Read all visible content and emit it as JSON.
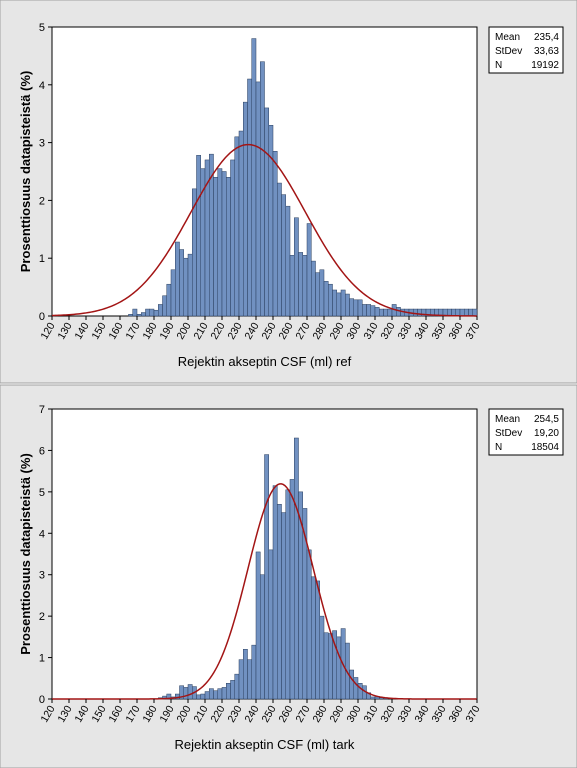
{
  "chart_data": [
    {
      "type": "bar",
      "subtype": "histogram-with-normal-fit",
      "title": "",
      "xlabel": "Rejektin akseptin CSF (ml) ref",
      "ylabel": "Prosenttiosuus datapisteistä (%)",
      "xlim": [
        120,
        370
      ],
      "ylim": [
        0,
        5
      ],
      "xticks": [
        "120",
        "130",
        "140",
        "150",
        "160",
        "170",
        "180",
        "190",
        "200",
        "210",
        "220",
        "230",
        "240",
        "250",
        "260",
        "270",
        "280",
        "290",
        "300",
        "310",
        "320",
        "330",
        "340",
        "350",
        "360",
        "370"
      ],
      "yticks": [
        "0",
        "1",
        "2",
        "3",
        "4",
        "5"
      ],
      "bin_start": 120,
      "bin_width": 2.5,
      "values": [
        0,
        0,
        0,
        0,
        0,
        0,
        0,
        0,
        0,
        0,
        0,
        0,
        0,
        0,
        0,
        0,
        0,
        0,
        0.03,
        0.12,
        0.03,
        0.06,
        0.12,
        0.12,
        0.1,
        0.2,
        0.35,
        0.55,
        0.8,
        1.28,
        1.15,
        1.0,
        1.07,
        2.2,
        2.78,
        2.55,
        2.7,
        2.8,
        2.4,
        2.55,
        2.5,
        2.4,
        2.7,
        3.1,
        3.2,
        3.7,
        4.1,
        4.8,
        4.05,
        4.4,
        3.6,
        3.3,
        2.85,
        2.3,
        2.1,
        1.9,
        1.05,
        1.7,
        1.1,
        1.05,
        1.6,
        0.95,
        0.75,
        0.8,
        0.6,
        0.55,
        0.45,
        0.4,
        0.45,
        0.38,
        0.3,
        0.28,
        0.28,
        0.2,
        0.2,
        0.18,
        0.15,
        0.12,
        0.12,
        0.12,
        0.2,
        0.15,
        0.12,
        0.12,
        0.12,
        0.12,
        0.12,
        0.12,
        0.12,
        0.12,
        0.12,
        0.12,
        0.12,
        0.12,
        0.12,
        0.12,
        0.12,
        0.12,
        0.12,
        0.12
      ],
      "fit": {
        "type": "normal",
        "mean": 235.4,
        "stdev": 33.63
      },
      "stats": [
        {
          "label": "Mean",
          "value": "235,4"
        },
        {
          "label": "StDev",
          "value": "33,63"
        },
        {
          "label": "N",
          "value": "19192"
        }
      ],
      "legend_position": "right",
      "colors": {
        "bar": "#7191c1",
        "bar_edge": "#2a3f5e",
        "fit_line": "#a31515"
      }
    },
    {
      "type": "bar",
      "subtype": "histogram-with-normal-fit",
      "title": "",
      "xlabel": "Rejektin akseptin CSF (ml) tark",
      "ylabel": "Prosenttiosuus datapisteistä (%)",
      "xlim": [
        120,
        370
      ],
      "ylim": [
        0,
        7
      ],
      "xticks": [
        "120",
        "130",
        "140",
        "150",
        "160",
        "170",
        "180",
        "190",
        "200",
        "210",
        "220",
        "230",
        "240",
        "250",
        "260",
        "270",
        "280",
        "290",
        "300",
        "310",
        "320",
        "330",
        "340",
        "350",
        "360",
        "370"
      ],
      "yticks": [
        "0",
        "1",
        "2",
        "3",
        "4",
        "5",
        "6",
        "7"
      ],
      "bin_start": 120,
      "bin_width": 2.5,
      "values": [
        0,
        0,
        0,
        0,
        0,
        0,
        0,
        0,
        0,
        0,
        0,
        0,
        0,
        0,
        0,
        0,
        0,
        0,
        0,
        0,
        0,
        0,
        0,
        0,
        0,
        0.03,
        0.07,
        0.12,
        0.05,
        0.12,
        0.32,
        0.28,
        0.35,
        0.3,
        0.1,
        0.12,
        0.18,
        0.25,
        0.2,
        0.25,
        0.28,
        0.38,
        0.45,
        0.6,
        0.95,
        1.2,
        0.95,
        1.3,
        3.55,
        3.0,
        5.9,
        3.6,
        5.15,
        4.7,
        4.5,
        5.05,
        5.3,
        6.3,
        5.0,
        4.6,
        3.6,
        2.95,
        2.85,
        2.0,
        1.6,
        1.58,
        1.65,
        1.5,
        1.7,
        1.35,
        0.7,
        0.52,
        0.38,
        0.32,
        0.15,
        0.05,
        0.05,
        0.03,
        0.02,
        0,
        0,
        0,
        0,
        0,
        0,
        0,
        0,
        0,
        0,
        0,
        0,
        0,
        0,
        0,
        0,
        0,
        0,
        0,
        0,
        0
      ],
      "fit": {
        "type": "normal",
        "mean": 254.5,
        "stdev": 19.2
      },
      "stats": [
        {
          "label": "Mean",
          "value": "254,5"
        },
        {
          "label": "StDev",
          "value": "19,20"
        },
        {
          "label": "N",
          "value": "18504"
        }
      ],
      "legend_position": "right",
      "colors": {
        "bar": "#7191c1",
        "bar_edge": "#2a3f5e",
        "fit_line": "#a31515"
      }
    }
  ]
}
